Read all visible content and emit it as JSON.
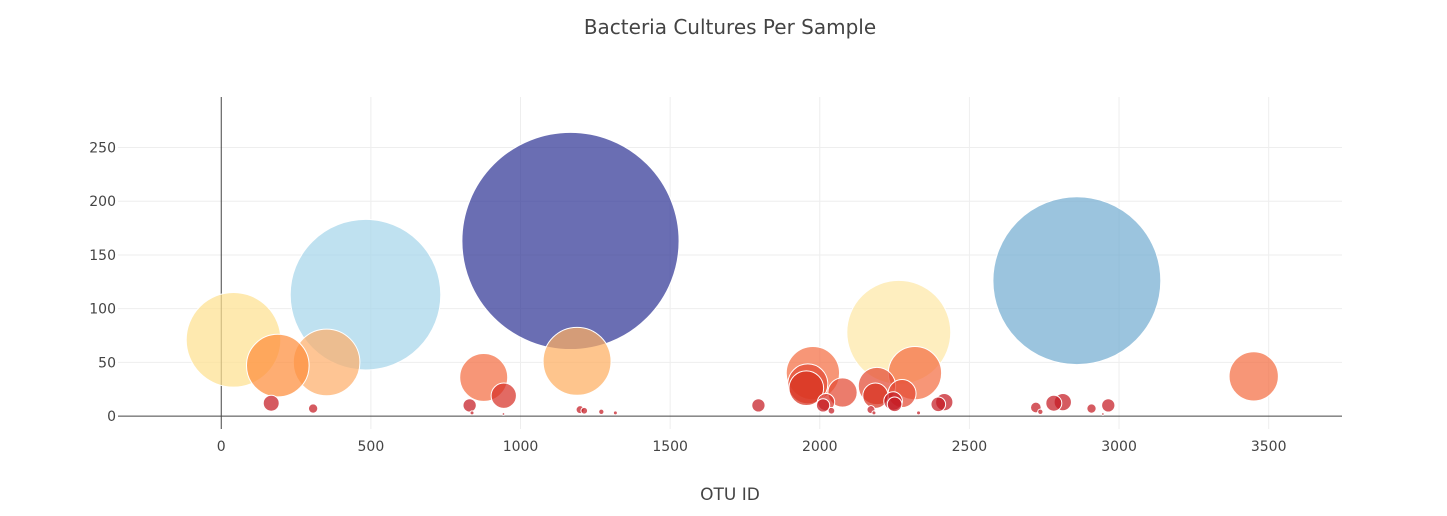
{
  "chart_data": {
    "type": "scatter",
    "title": "Bacteria Cultures Per Sample",
    "xlabel": "OTU ID",
    "ylabel": "",
    "xlim": [
      -345,
      3745
    ],
    "ylim": [
      -12,
      297
    ],
    "x_ticks": [
      0,
      500,
      1000,
      1500,
      2000,
      2500,
      3000,
      3500
    ],
    "y_ticks": [
      0,
      50,
      100,
      150,
      200,
      250
    ],
    "grid": true,
    "marker_size_encodes": "sample value",
    "points": [
      {
        "x": 41,
        "y": 71,
        "size": 71,
        "color": "#fee090"
      },
      {
        "x": 189,
        "y": 47,
        "size": 47,
        "color": "#fd8d3c"
      },
      {
        "x": 352,
        "y": 50,
        "size": 50,
        "color": "#fdae6b"
      },
      {
        "x": 482,
        "y": 113,
        "size": 113,
        "color": "#a6d5ea"
      },
      {
        "x": 1167,
        "y": 163,
        "size": 163,
        "color": "#313695"
      },
      {
        "x": 1189,
        "y": 51,
        "size": 51,
        "color": "#fdae61"
      },
      {
        "x": 2264,
        "y": 78,
        "size": 78,
        "color": "#fee8a6"
      },
      {
        "x": 2859,
        "y": 126,
        "size": 126,
        "color": "#74add1"
      },
      {
        "x": 877,
        "y": 36,
        "size": 36,
        "color": "#f46d43"
      },
      {
        "x": 944,
        "y": 19,
        "size": 19,
        "color": "#d73027"
      },
      {
        "x": 1977,
        "y": 40,
        "size": 40,
        "color": "#f46d43"
      },
      {
        "x": 1960,
        "y": 30,
        "size": 30,
        "color": "#e34a33"
      },
      {
        "x": 1955,
        "y": 26,
        "size": 26,
        "color": "#d7301f"
      },
      {
        "x": 2076,
        "y": 22,
        "size": 22,
        "color": "#e34a33"
      },
      {
        "x": 2191,
        "y": 28,
        "size": 28,
        "color": "#e34a33"
      },
      {
        "x": 2186,
        "y": 19,
        "size": 19,
        "color": "#d7301f"
      },
      {
        "x": 2318,
        "y": 40,
        "size": 40,
        "color": "#f46d43"
      },
      {
        "x": 2275,
        "y": 21,
        "size": 21,
        "color": "#e34a33"
      },
      {
        "x": 2245,
        "y": 14,
        "size": 14,
        "color": "#c51b23"
      },
      {
        "x": 2250,
        "y": 11,
        "size": 11,
        "color": "#c51b23"
      },
      {
        "x": 3450,
        "y": 37,
        "size": 37,
        "color": "#f46d43"
      },
      {
        "x": 2021,
        "y": 13,
        "size": 13,
        "color": "#d73027"
      },
      {
        "x": 2011,
        "y": 10,
        "size": 10,
        "color": "#c51b23"
      },
      {
        "x": 167,
        "y": 12,
        "size": 12,
        "color": "#c51b23"
      },
      {
        "x": 307,
        "y": 7,
        "size": 7,
        "color": "#c51b23"
      },
      {
        "x": 830,
        "y": 10,
        "size": 10,
        "color": "#c51b23"
      },
      {
        "x": 1199,
        "y": 6,
        "size": 6,
        "color": "#c51b23"
      },
      {
        "x": 1213,
        "y": 5,
        "size": 5,
        "color": "#c51b23"
      },
      {
        "x": 1270,
        "y": 4,
        "size": 4,
        "color": "#c51b23"
      },
      {
        "x": 1795,
        "y": 10,
        "size": 10,
        "color": "#c51b23"
      },
      {
        "x": 2039,
        "y": 5,
        "size": 5,
        "color": "#c51b23"
      },
      {
        "x": 2171,
        "y": 6,
        "size": 6,
        "color": "#c51b23"
      },
      {
        "x": 2396,
        "y": 11,
        "size": 11,
        "color": "#c51b23"
      },
      {
        "x": 2416,
        "y": 13,
        "size": 13,
        "color": "#c51b23"
      },
      {
        "x": 2722,
        "y": 8,
        "size": 8,
        "color": "#c51b23"
      },
      {
        "x": 2737,
        "y": 4,
        "size": 4,
        "color": "#c51b23"
      },
      {
        "x": 2782,
        "y": 12,
        "size": 12,
        "color": "#c51b23"
      },
      {
        "x": 2812,
        "y": 13,
        "size": 13,
        "color": "#c51b23"
      },
      {
        "x": 2908,
        "y": 7,
        "size": 7,
        "color": "#c51b23"
      },
      {
        "x": 2964,
        "y": 10,
        "size": 10,
        "color": "#c51b23"
      },
      {
        "x": 1317,
        "y": 3,
        "size": 3,
        "color": "#c51b23"
      },
      {
        "x": 943,
        "y": 2,
        "size": 2,
        "color": "#c51b23"
      },
      {
        "x": 2330,
        "y": 3,
        "size": 3,
        "color": "#c51b23"
      },
      {
        "x": 2946,
        "y": 2,
        "size": 2,
        "color": "#c51b23"
      },
      {
        "x": 2181,
        "y": 3,
        "size": 3,
        "color": "#c51b23"
      },
      {
        "x": 838,
        "y": 3,
        "size": 3,
        "color": "#c51b23"
      }
    ]
  }
}
